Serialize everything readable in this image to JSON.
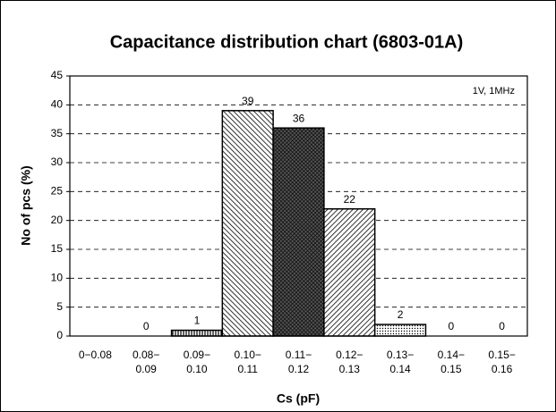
{
  "chart_data": {
    "type": "bar",
    "title": "Capacitance distribution chart (6803-01A)",
    "annotation": "1V, 1MHz",
    "xlabel": "Cs (pF)",
    "ylabel": "No of pcs (%)",
    "categories": [
      [
        "0−0.08"
      ],
      [
        "0.08−",
        "0.09"
      ],
      [
        "0.09−",
        "0.10"
      ],
      [
        "0.10−",
        "0.11"
      ],
      [
        "0.11−",
        "0.12"
      ],
      [
        "0.12−",
        "0.13"
      ],
      [
        "0.13−",
        "0.14"
      ],
      [
        "0.14−",
        "0.15"
      ],
      [
        "0.15−",
        "0.16"
      ]
    ],
    "values": [
      0,
      0,
      1,
      39,
      36,
      22,
      2,
      0,
      0
    ],
    "value_labels": [
      null,
      "0",
      "1",
      "39",
      "36",
      "22",
      "2",
      "0",
      "0"
    ],
    "hatches": [
      "none",
      "none",
      "vertical",
      "diag-left",
      "cross",
      "diag-right",
      "dots",
      "none",
      "none"
    ],
    "ylim": [
      0,
      45
    ],
    "yticks": [
      0,
      5,
      10,
      15,
      20,
      25,
      30,
      35,
      40,
      45
    ],
    "grid": true
  }
}
